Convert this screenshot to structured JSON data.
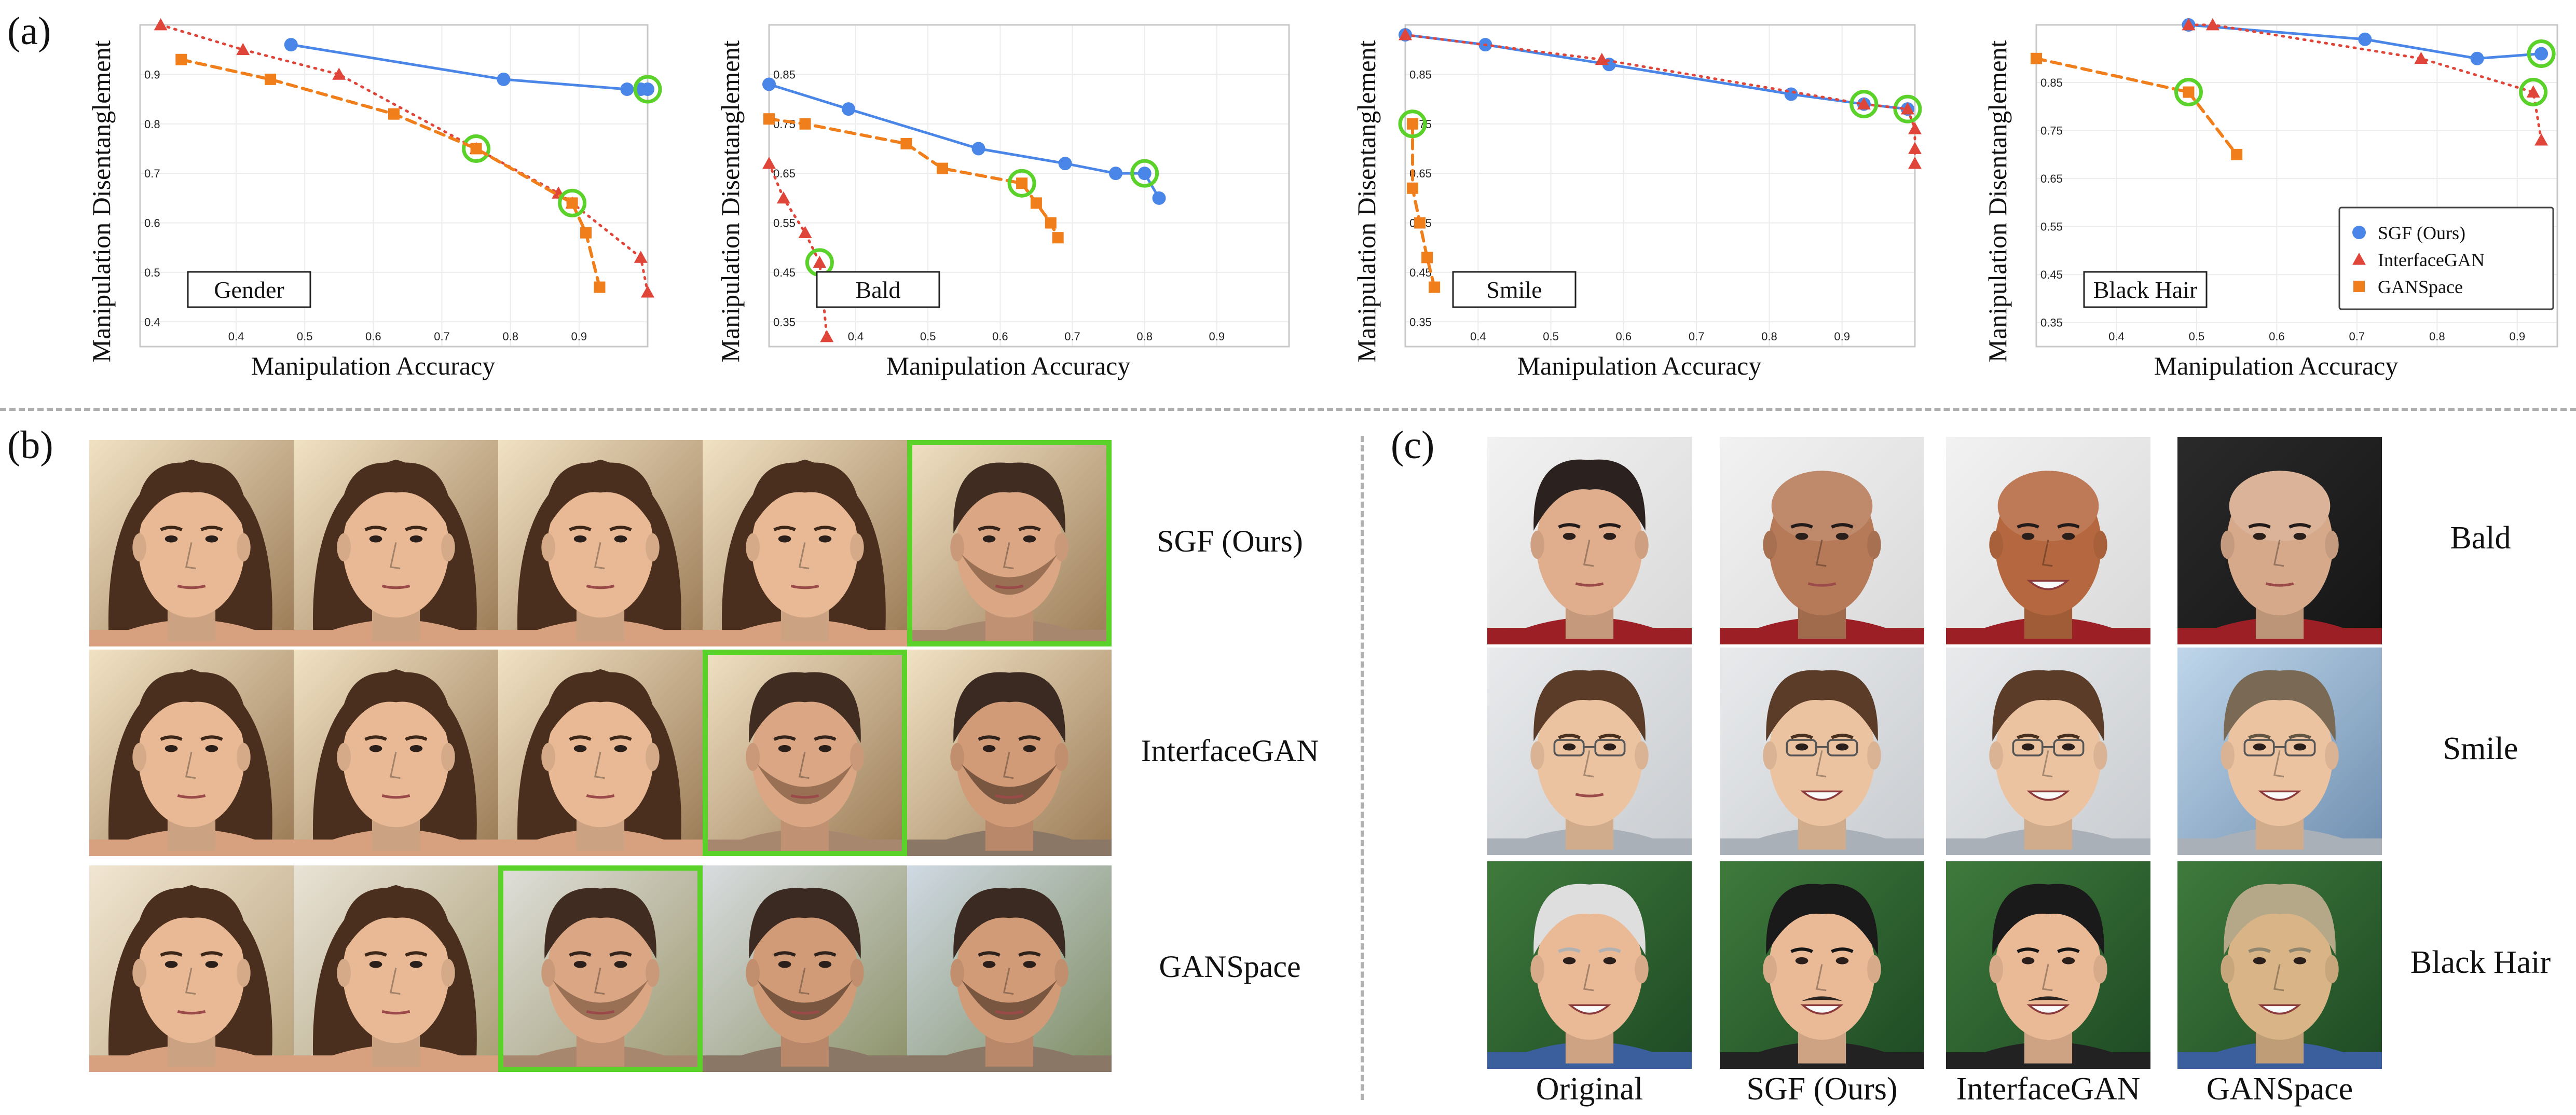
{
  "panel_labels": {
    "a": "(a)",
    "b": "(b)",
    "c": "(c)"
  },
  "chart_data": [
    {
      "type": "line",
      "attribute": "Gender",
      "xlabel": "Manipulation Accuracy",
      "ylabel": "Manipulation Disentanglement",
      "xlim": [
        0.26,
        1.0
      ],
      "ylim": [
        0.35,
        1.0
      ],
      "xticks": [
        "0.4",
        "0.5",
        "0.6",
        "0.7",
        "0.8",
        "0.9"
      ],
      "yticks": [
        "0.4",
        "0.5",
        "0.6",
        "0.7",
        "0.8",
        "0.9"
      ],
      "series": [
        {
          "name": "SGF (Ours)",
          "x": [
            0.48,
            0.79,
            0.97,
            0.99,
            1.0
          ],
          "y": [
            0.96,
            0.89,
            0.87,
            0.87,
            0.87
          ],
          "highlight_index": 4
        },
        {
          "name": "InterfaceGAN",
          "x": [
            0.29,
            0.41,
            0.55,
            0.75,
            0.87,
            0.89,
            0.99,
            1.0
          ],
          "y": [
            1.0,
            0.95,
            0.9,
            0.75,
            0.66,
            0.64,
            0.53,
            0.46
          ],
          "highlight_index": 3
        },
        {
          "name": "GANSpace",
          "x": [
            0.32,
            0.45,
            0.63,
            0.75,
            0.89,
            0.91,
            0.93
          ],
          "y": [
            0.93,
            0.89,
            0.82,
            0.75,
            0.64,
            0.58,
            0.47
          ],
          "highlight_index": 4
        }
      ]
    },
    {
      "type": "line",
      "attribute": "Bald",
      "xlabel": "Manipulation Accuracy",
      "ylabel": "Manipulation Disentanglement",
      "xlim": [
        0.28,
        1.0
      ],
      "ylim": [
        0.3,
        0.95
      ],
      "xticks": [
        "0.4",
        "0.5",
        "0.6",
        "0.7",
        "0.8",
        "0.9"
      ],
      "yticks": [
        "0.35",
        "0.45",
        "0.55",
        "0.65",
        "0.75",
        "0.85"
      ],
      "series": [
        {
          "name": "SGF (Ours)",
          "x": [
            0.28,
            0.39,
            0.57,
            0.69,
            0.76,
            0.8,
            0.82
          ],
          "y": [
            0.83,
            0.78,
            0.7,
            0.67,
            0.65,
            0.65,
            0.6
          ],
          "highlight_index": 5
        },
        {
          "name": "InterfaceGAN",
          "x": [
            0.28,
            0.3,
            0.33,
            0.35,
            0.36
          ],
          "y": [
            0.67,
            0.6,
            0.53,
            0.47,
            0.32
          ],
          "highlight_index": 3
        },
        {
          "name": "GANSpace",
          "x": [
            0.28,
            0.33,
            0.47,
            0.52,
            0.63,
            0.65,
            0.67,
            0.68
          ],
          "y": [
            0.76,
            0.75,
            0.71,
            0.66,
            0.63,
            0.59,
            0.55,
            0.52
          ],
          "highlight_index": 4
        }
      ]
    },
    {
      "type": "line",
      "attribute": "Smile",
      "xlabel": "Manipulation Accuracy",
      "ylabel": "Manipulation Disentanglement",
      "xlim": [
        0.3,
        1.0
      ],
      "ylim": [
        0.3,
        0.95
      ],
      "xticks": [
        "0.4",
        "0.5",
        "0.6",
        "0.7",
        "0.8",
        "0.9"
      ],
      "yticks": [
        "0.35",
        "0.45",
        "0.55",
        "0.65",
        "0.75",
        "0.85"
      ],
      "series": [
        {
          "name": "SGF (Ours)",
          "x": [
            0.3,
            0.41,
            0.58,
            0.83,
            0.93,
            0.99
          ],
          "y": [
            0.93,
            0.91,
            0.87,
            0.81,
            0.79,
            0.78
          ],
          "highlight_index": 5
        },
        {
          "name": "InterfaceGAN",
          "x": [
            0.3,
            0.57,
            0.93,
            0.99,
            1.0,
            1.0,
            1.0
          ],
          "y": [
            0.93,
            0.88,
            0.79,
            0.78,
            0.74,
            0.7,
            0.67
          ],
          "highlight_index": 2
        },
        {
          "name": "GANSpace",
          "x": [
            0.31,
            0.31,
            0.32,
            0.33,
            0.34
          ],
          "y": [
            0.75,
            0.62,
            0.55,
            0.48,
            0.42
          ],
          "highlight_index": 0
        }
      ]
    },
    {
      "type": "line",
      "attribute": "Black Hair",
      "xlabel": "Manipulation Accuracy",
      "ylabel": "Manipulation Disentanglement",
      "xlim": [
        0.3,
        0.95
      ],
      "ylim": [
        0.3,
        0.97
      ],
      "xticks": [
        "0.4",
        "0.5",
        "0.6",
        "0.7",
        "0.8",
        "0.9"
      ],
      "yticks": [
        "0.35",
        "0.45",
        "0.55",
        "0.65",
        "0.75",
        "0.85"
      ],
      "series": [
        {
          "name": "SGF (Ours)",
          "x": [
            0.49,
            0.71,
            0.85,
            0.93
          ],
          "y": [
            0.97,
            0.94,
            0.9,
            0.91
          ],
          "highlight_index": 3
        },
        {
          "name": "InterfaceGAN",
          "x": [
            0.49,
            0.52,
            0.78,
            0.92,
            0.93
          ],
          "y": [
            0.97,
            0.97,
            0.9,
            0.83,
            0.73
          ],
          "highlight_index": 3
        },
        {
          "name": "GANSpace",
          "x": [
            0.3,
            0.49,
            0.55
          ],
          "y": [
            0.9,
            0.83,
            0.7
          ],
          "highlight_index": 1
        }
      ]
    }
  ],
  "legend": [
    {
      "name": "SGF (Ours)",
      "marker": "circle"
    },
    {
      "name": "InterfaceGAN",
      "marker": "triangle"
    },
    {
      "name": "GANSpace",
      "marker": "square"
    }
  ],
  "colors": {
    "sgf": "#4a86e8",
    "interfacegan": "#e0453a",
    "ganspace": "#f07e1a",
    "highlight": "#5ad22a"
  },
  "panel_b": {
    "rows": [
      {
        "method": "SGF (Ours)",
        "highlight_col": 4
      },
      {
        "method": "InterfaceGAN",
        "highlight_col": 3
      },
      {
        "method": "GANSpace",
        "highlight_col": 2
      }
    ]
  },
  "panel_c": {
    "columns": [
      "Original",
      "SGF (Ours)",
      "InterfaceGAN",
      "GANSpace"
    ],
    "rows": [
      "Bald",
      "Smile",
      "Black Hair"
    ]
  }
}
